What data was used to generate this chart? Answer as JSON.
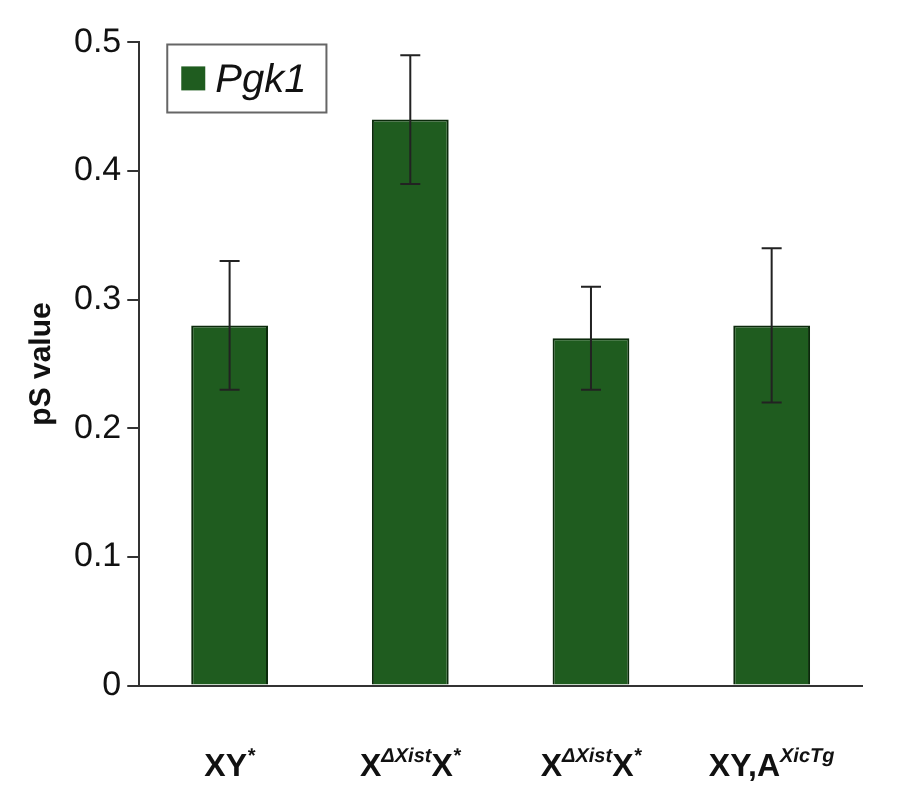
{
  "chart_data": {
    "type": "bar",
    "ylabel": "pS value",
    "categories": [
      "XY$^{*}$",
      "X$^{ΔXist}$X$^{*}$",
      "X$^{ΔXist}$X$^{*}$",
      "XY,A$^{XicTg}$"
    ],
    "series": [
      {
        "name": "Pgk1",
        "color": "#1f5c1f",
        "values": [
          0.28,
          0.44,
          0.27,
          0.28
        ],
        "errors": [
          0.05,
          0.05,
          0.04,
          0.06
        ]
      }
    ],
    "ylim": [
      0,
      0.5
    ],
    "yticks": [
      0,
      0.1,
      0.2,
      0.3,
      0.4,
      0.5
    ],
    "grid": false,
    "legend": "top left"
  }
}
